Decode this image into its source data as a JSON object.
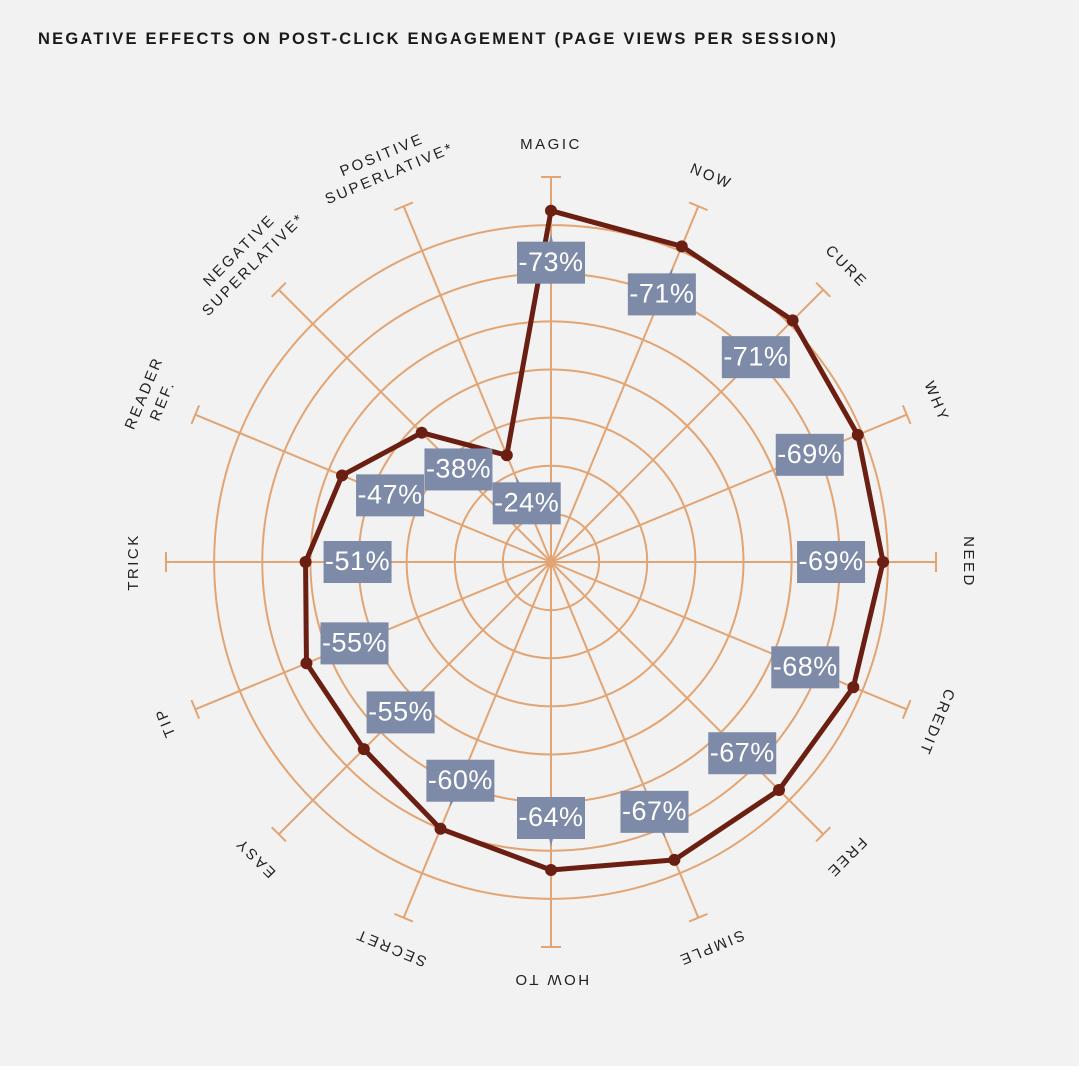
{
  "chart_data": {
    "type": "radar",
    "title": "NEGATIVE EFFECTS ON POST-CLICK ENGAGEMENT (PAGE VIEWS PER SESSION)",
    "categories": [
      "MAGIC",
      "NOW",
      "CURE",
      "WHY",
      "NEED",
      "CREDIT",
      "FREE",
      "SIMPLE",
      "HOW TO",
      "SECRET",
      "EASY",
      "TIP",
      "TRICK",
      "READER\nREF.",
      "NEGATIVE\nSUPERLATIVE*",
      "POSITIVE\nSUPERLATIVE*"
    ],
    "values": [
      -73,
      -71,
      -71,
      -69,
      -69,
      -68,
      -67,
      -67,
      -64,
      -60,
      -55,
      -55,
      -51,
      -47,
      -38,
      -24
    ],
    "value_labels": [
      "-73%",
      "-71%",
      "-71%",
      "-69%",
      "-69%",
      "-68%",
      "-67%",
      "-67%",
      "-64%",
      "-60%",
      "-55%",
      "-55%",
      "-51%",
      "-47%",
      "-38%",
      "-24%"
    ],
    "color": "#6b1e12",
    "label_color": "#7d8aa8",
    "grid_color": "#e3a473",
    "rlim": [
      0,
      -80
    ],
    "rticks": [
      -10,
      -20,
      -30,
      -40,
      -50,
      -60,
      -70
    ],
    "grid": true
  }
}
